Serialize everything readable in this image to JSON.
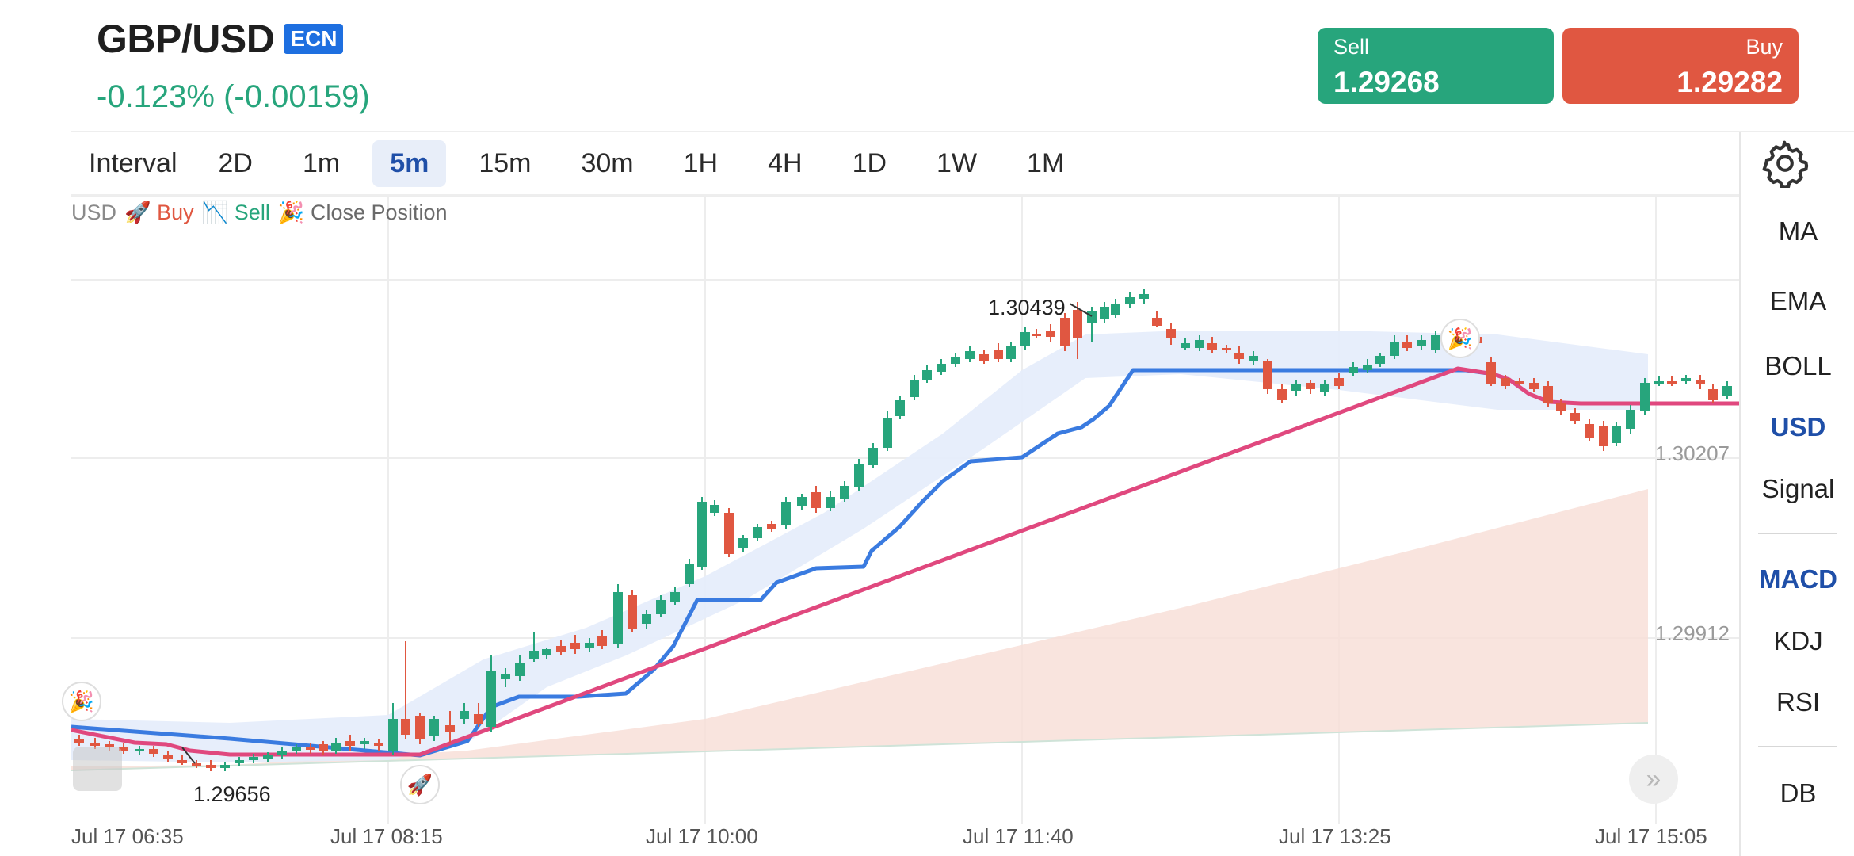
{
  "header": {
    "symbol": "GBP/USD",
    "badge": "ECN",
    "change": "-0.123% (-0.00159)",
    "sell_label": "Sell",
    "sell_price": "1.29268",
    "buy_label": "Buy",
    "buy_price": "1.29282"
  },
  "intervals": [
    {
      "label": "Interval",
      "active": false
    },
    {
      "label": "2D",
      "active": false
    },
    {
      "label": "1m",
      "active": false
    },
    {
      "label": "5m",
      "active": true
    },
    {
      "label": "15m",
      "active": false
    },
    {
      "label": "30m",
      "active": false
    },
    {
      "label": "1H",
      "active": false
    },
    {
      "label": "4H",
      "active": false
    },
    {
      "label": "1D",
      "active": false
    },
    {
      "label": "1W",
      "active": false
    },
    {
      "label": "1M",
      "active": false
    }
  ],
  "settings_icon": "gear-icon",
  "indicators": [
    "MA",
    "EMA",
    "BOLL",
    "USD",
    "Signal",
    "MACD",
    "KDJ",
    "RSI",
    "DB"
  ],
  "active_indicators": [
    "USD",
    "MACD"
  ],
  "legend": {
    "usd": "USD",
    "buy": "🚀 Buy",
    "sell": "📉 Sell",
    "close": "🎉 Close Position"
  },
  "chart": {
    "high_label": "1.30439",
    "low_label": "1.29656",
    "price_labels": [
      "1.30207",
      "1.29912"
    ],
    "time_labels": [
      "Jul 17 06:35",
      "Jul 17 08:15",
      "Jul 17 10:00",
      "Jul 17 11:40",
      "Jul 17 13:25",
      "Jul 17 15:05"
    ],
    "markers": {
      "close": "🎉",
      "buy": "🚀"
    },
    "forward_icon": "»",
    "colors": {
      "up": "#27a57c",
      "down": "#e05741",
      "line": "#3a7be0",
      "pink": "#e0487e",
      "band": "#e4ecfb",
      "lower_band": "#f7ddd6"
    }
  },
  "chart_data": {
    "type": "candlestick",
    "symbol": "GBP/USD",
    "interval": "5m",
    "x_ticks": [
      "Jul 17 06:35",
      "Jul 17 08:15",
      "Jul 17 10:00",
      "Jul 17 11:40",
      "Jul 17 13:25",
      "Jul 17 15:05"
    ],
    "y_ticks": [
      1.30207,
      1.29912
    ],
    "annotations": [
      {
        "label": "1.30439",
        "kind": "high"
      },
      {
        "label": "1.29656",
        "kind": "low"
      }
    ]
  }
}
